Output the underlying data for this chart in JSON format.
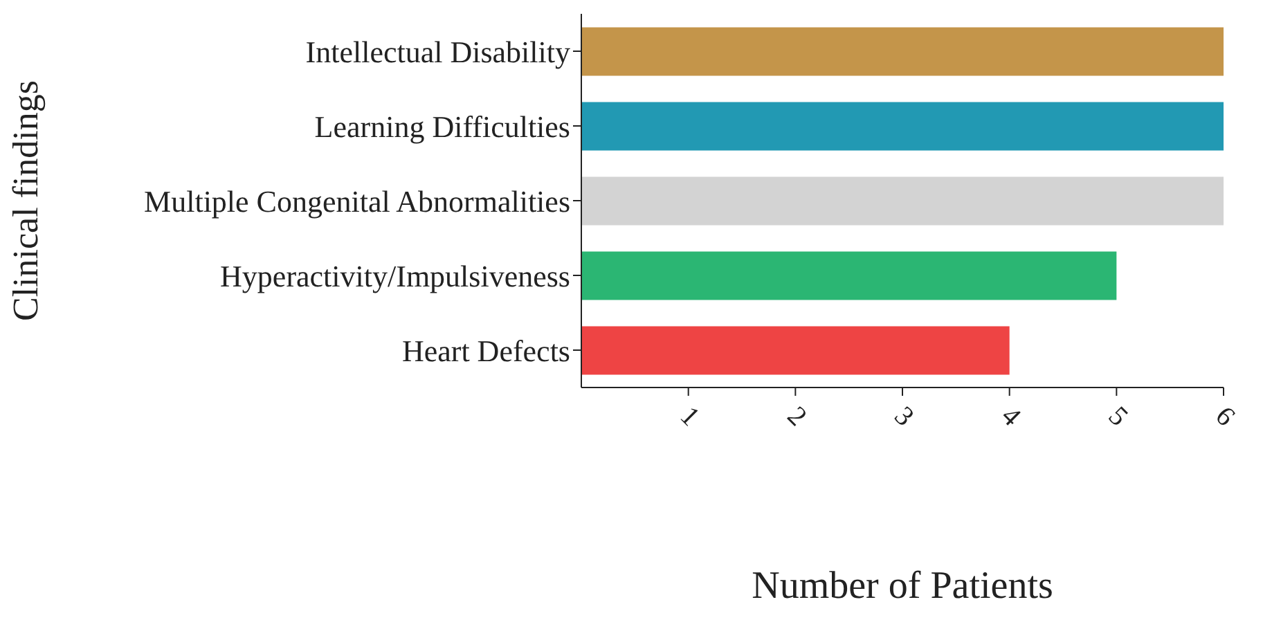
{
  "chart_data": {
    "type": "bar",
    "orientation": "horizontal",
    "xlabel": "Number of Patients",
    "ylabel": "Clinical findings",
    "categories": [
      "Intellectual Disability",
      "Learning Difficulties",
      "Multiple Congenital Abnormalities",
      "Hyperactivity/Impulsiveness",
      "Heart Defects"
    ],
    "values": [
      6,
      6,
      6,
      5,
      4
    ],
    "colors": [
      "#c4954a",
      "#2299b3",
      "#d3d3d3",
      "#2bb673",
      "#ee4444"
    ],
    "xlim": [
      0,
      6
    ],
    "xticks": [
      1,
      2,
      3,
      4,
      5,
      6
    ],
    "grid": false
  }
}
